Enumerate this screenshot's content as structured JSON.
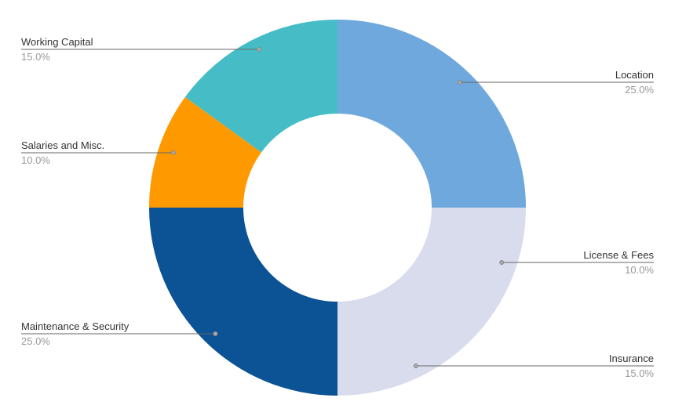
{
  "chart_data": {
    "type": "pie",
    "donut": true,
    "unit": "%",
    "slices": [
      {
        "label": "Location",
        "value": 25.0,
        "display": "25.0%",
        "color": "#6fa8dc",
        "side": "right"
      },
      {
        "label": "License & Fees",
        "value": 10.0,
        "display": "10.0%",
        "color": "#d9dced",
        "side": "right"
      },
      {
        "label": "Insurance",
        "value": 15.0,
        "display": "15.0%",
        "color": "#d9dced",
        "side": "right"
      },
      {
        "label": "Maintenance & Security",
        "value": 25.0,
        "display": "25.0%",
        "color": "#0b5394",
        "side": "left"
      },
      {
        "label": "Salaries and Misc.",
        "value": 10.0,
        "display": "10.0%",
        "color": "#ff9900",
        "side": "left"
      },
      {
        "label": "Working Capital",
        "value": 15.0,
        "display": "15.0%",
        "color": "#46bdc6",
        "side": "left"
      }
    ],
    "legend": "callout-labels"
  }
}
